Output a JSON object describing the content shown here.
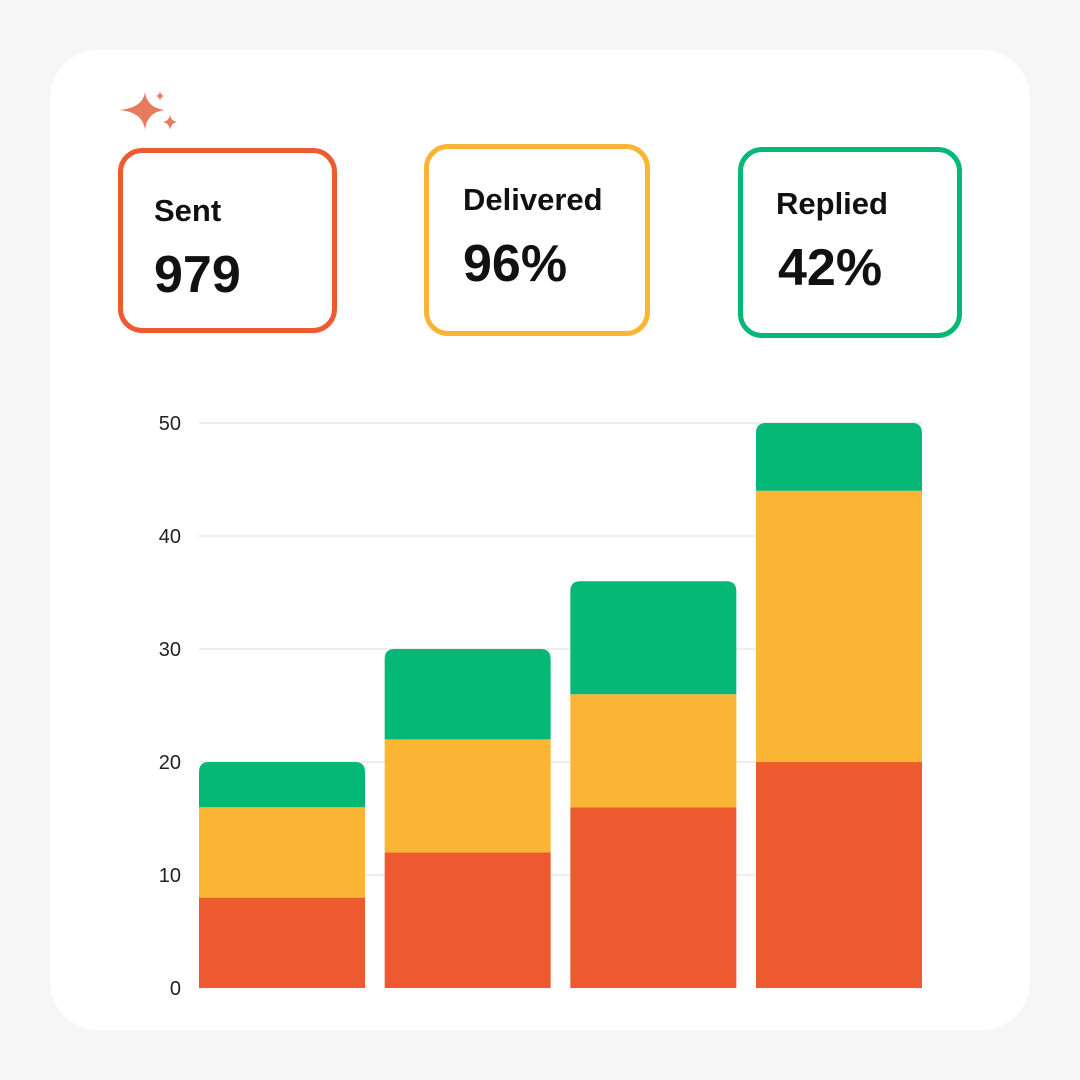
{
  "colors": {
    "sent": "#ee5a30",
    "delivered": "#fbb535",
    "replied": "#06b876"
  },
  "decoration": {
    "icon": "sparkle-icon"
  },
  "cards": [
    {
      "label": "Sent",
      "value": "979",
      "color": "#ee5a30"
    },
    {
      "label": "Delivered",
      "value": "96%",
      "color": "#fbb535"
    },
    {
      "label": "Replied",
      "value": "42%",
      "color": "#06b876"
    }
  ],
  "chart_data": {
    "type": "bar",
    "stacked": true,
    "categories": [
      "",
      "",
      "",
      ""
    ],
    "series": [
      {
        "color": "#ee5a30",
        "values": [
          8,
          12,
          16,
          20
        ]
      },
      {
        "color": "#fbb535",
        "values": [
          8,
          10,
          10,
          24
        ]
      },
      {
        "color": "#06b876",
        "values": [
          4,
          8,
          10,
          6
        ]
      }
    ],
    "ylim": [
      0,
      50
    ],
    "yticks": [
      "0",
      "10",
      "20",
      "30",
      "40",
      "50"
    ],
    "grid": true,
    "legend": "none"
  }
}
